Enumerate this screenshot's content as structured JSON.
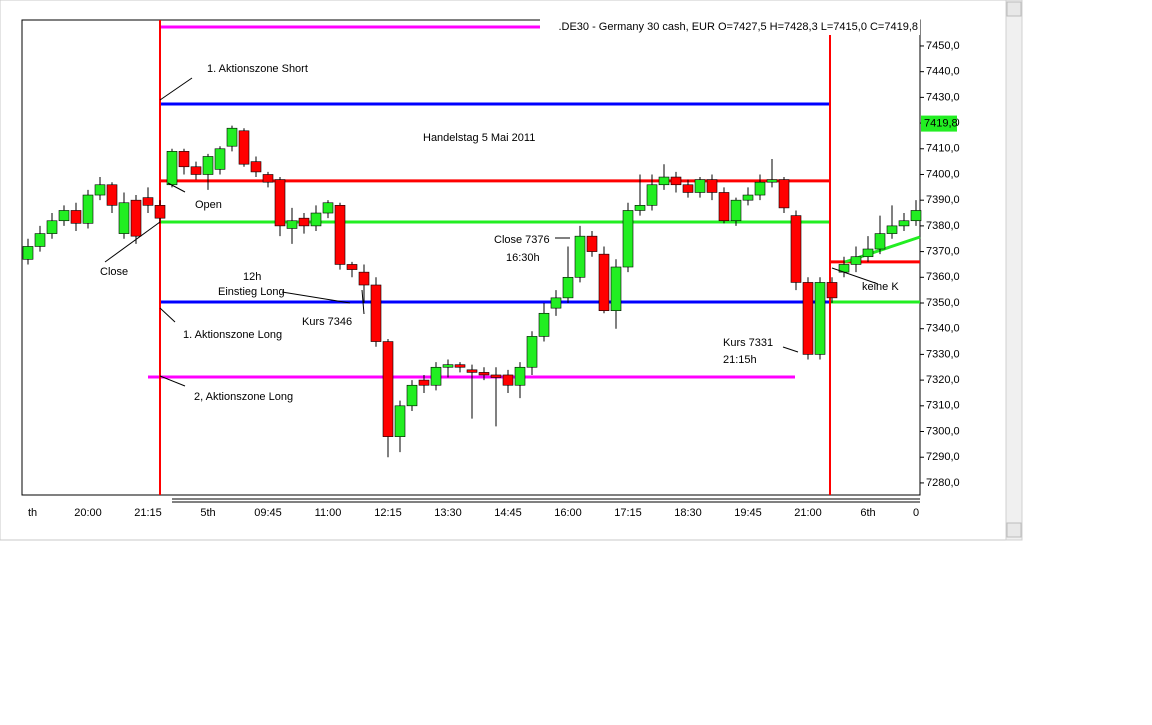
{
  "chart_data": {
    "type": "candlestick",
    "title": ".DE30 - Germany 30 cash, EUR O=7427,5 H=7428,3 L=7415,0 C=7419,8",
    "categories": [
      "th",
      null,
      null,
      null,
      null,
      "20:00",
      null,
      null,
      null,
      null,
      "21:15",
      null,
      null,
      null,
      null,
      "5th",
      null,
      null,
      null,
      null,
      "09:45",
      null,
      null,
      null,
      null,
      "11:00",
      null,
      null,
      null,
      null,
      "12:15",
      null,
      null,
      null,
      null,
      "13:30",
      null,
      null,
      null,
      null,
      "14:45",
      null,
      null,
      null,
      null,
      "16:00",
      null,
      null,
      null,
      null,
      "17:15",
      null,
      null,
      null,
      null,
      "18:30",
      null,
      null,
      null,
      null,
      "19:45",
      null,
      null,
      null,
      null,
      "21:00",
      null,
      null,
      null,
      null,
      "6th",
      null,
      null,
      null,
      "0"
    ],
    "open": [
      7367,
      7372,
      7377,
      7382,
      7386,
      7381,
      7392,
      7396,
      7377,
      7390,
      7391,
      7388,
      7396,
      7409,
      7403,
      7400,
      7402,
      7411,
      7417,
      7405,
      7400,
      7398,
      7379,
      7383,
      7380,
      7385,
      7388,
      7365,
      7362,
      7357,
      7335,
      7298,
      7310,
      7320,
      7318,
      7325,
      7326,
      7324,
      7323,
      7322,
      7322,
      7318,
      7325,
      7337,
      7348,
      7352,
      7360,
      7376,
      7369,
      7347,
      7364,
      7386,
      7388,
      7396,
      7399,
      7396,
      7393,
      7398,
      7393,
      7382,
      7390,
      7392,
      7397,
      7398,
      7384,
      7358,
      7330,
      7358,
      7362,
      7365,
      7368,
      7371,
      7377,
      7380,
      7382
    ],
    "high": [
      7375,
      7380,
      7385,
      7388,
      7389,
      7394,
      7399,
      7397,
      7393,
      7392,
      7395,
      7390,
      7410,
      7410,
      7405,
      7408,
      7411,
      7419,
      7418,
      7407,
      7401,
      7399,
      7387,
      7385,
      7388,
      7390,
      7389,
      7366,
      7365,
      7360,
      7336,
      7312,
      7320,
      7322,
      7327,
      7328,
      7327,
      7326,
      7325,
      7325,
      7324,
      7327,
      7339,
      7350,
      7355,
      7372,
      7380,
      7378,
      7372,
      7367,
      7389,
      7400,
      7400,
      7404,
      7401,
      7398,
      7399,
      7400,
      7395,
      7391,
      7395,
      7400,
      7406,
      7399,
      7386,
      7360,
      7360,
      7360,
      7368,
      7372,
      7376,
      7384,
      7388,
      7385,
      7390
    ],
    "low": [
      7365,
      7370,
      7375,
      7380,
      7378,
      7379,
      7390,
      7385,
      7375,
      7373,
      7385,
      7381,
      7395,
      7400,
      7398,
      7394,
      7400,
      7409,
      7403,
      7399,
      7395,
      7376,
      7373,
      7377,
      7378,
      7383,
      7363,
      7360,
      7350,
      7333,
      7290,
      7292,
      7308,
      7315,
      7316,
      7321,
      7323,
      7305,
      7320,
      7302,
      7315,
      7313,
      7322,
      7335,
      7345,
      7350,
      7358,
      7368,
      7346,
      7340,
      7362,
      7384,
      7386,
      7394,
      7393,
      7391,
      7391,
      7390,
      7381,
      7380,
      7388,
      7390,
      7395,
      7385,
      7355,
      7328,
      7328,
      7350,
      7360,
      7362,
      7366,
      7369,
      7375,
      7378,
      7380
    ],
    "close": [
      7372,
      7377,
      7382,
      7386,
      7381,
      7392,
      7396,
      7388,
      7389,
      7376,
      7388,
      7383,
      7409,
      7403,
      7400,
      7407,
      7410,
      7418,
      7404,
      7401,
      7397,
      7380,
      7382,
      7380,
      7385,
      7389,
      7365,
      7363,
      7357,
      7335,
      7298,
      7310,
      7318,
      7318,
      7325,
      7326,
      7325,
      7323,
      7322,
      7321,
      7318,
      7325,
      7337,
      7346,
      7352,
      7360,
      7376,
      7370,
      7347,
      7364,
      7386,
      7388,
      7396,
      7399,
      7396,
      7393,
      7398,
      7393,
      7382,
      7390,
      7392,
      7397,
      7398,
      7387,
      7358,
      7330,
      7358,
      7352,
      7365,
      7368,
      7371,
      7377,
      7380,
      7382,
      7386
    ],
    "up_color": "#22ee22",
    "down_color": "#ff0000",
    "ylim": [
      7275.3,
      7460.1
    ],
    "yticks": [
      {
        "value": 7280,
        "label": "7280,0"
      },
      {
        "value": 7290,
        "label": "7290,0"
      },
      {
        "value": 7300,
        "label": "7300,0"
      },
      {
        "value": 7310,
        "label": "7310,0"
      },
      {
        "value": 7320,
        "label": "7320,0"
      },
      {
        "value": 7330,
        "label": "7330,0"
      },
      {
        "value": 7340,
        "label": "7340,0"
      },
      {
        "value": 7350,
        "label": "7350,0"
      },
      {
        "value": 7360,
        "label": "7360,0"
      },
      {
        "value": 7370,
        "label": "7370,0"
      },
      {
        "value": 7380,
        "label": "7380,0"
      },
      {
        "value": 7390,
        "label": "7390,0"
      },
      {
        "value": 7400,
        "label": "7400,0"
      },
      {
        "value": 7410,
        "label": "7410,0"
      },
      {
        "value": 7420,
        "label": "7420,0"
      },
      {
        "value": 7430,
        "label": "7430,0"
      },
      {
        "value": 7440,
        "label": "7440,0"
      },
      {
        "value": 7450,
        "label": "7450,0"
      }
    ],
    "last_price": {
      "value": 7419.8,
      "label": "7419,8"
    },
    "levels": [
      {
        "value": 7457.4,
        "color": "#ff00ff"
      },
      {
        "value": 7427.4,
        "color": "#0000ff"
      },
      {
        "value": 7397.5,
        "color": "#ff0000"
      },
      {
        "value": 7381.5,
        "color": "#22ee22"
      },
      {
        "value": 7350.4,
        "color": "#0000ff"
      },
      {
        "value": 7321.2,
        "color": "#ff00ff"
      },
      {
        "value": 7366.0,
        "color": "#ff0000"
      },
      {
        "value": 7350.4,
        "color": "#22ee22"
      }
    ],
    "annotations": [
      "1. Aktionszone Short",
      "Handelstag 5 Mai 2011",
      "Open",
      "Close",
      "Close 7376",
      "16:30h",
      "12h",
      "Einstieg Long",
      "Kurs 7346",
      "1. Aktionszone Long",
      "2, Aktionszone Long",
      "Kurs 7331",
      "21:15h",
      "keine K"
    ]
  }
}
